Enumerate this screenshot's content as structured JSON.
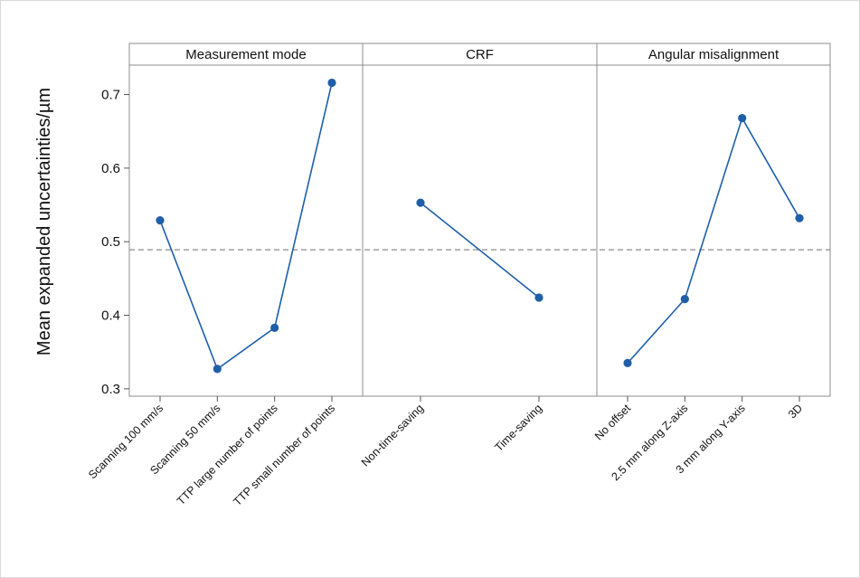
{
  "chart_data": {
    "type": "line",
    "ylabel": "Mean expanded uncertainties/µm",
    "ylim": [
      0.29,
      0.74
    ],
    "yticks": [
      "0.3",
      "0.4",
      "0.5",
      "0.6",
      "0.7"
    ],
    "reference_line": 0.489,
    "line_color": "#1f5fa8",
    "panels": [
      {
        "title": "Measurement mode",
        "categories": [
          "Scanning 100 mm/s",
          "Scanning 50 mm/s",
          "TTP large number of points",
          "TTP small number of points"
        ],
        "values": [
          0.529,
          0.327,
          0.383,
          0.716
        ]
      },
      {
        "title": "CRF",
        "categories": [
          "Non-time-saving",
          "Time-saving"
        ],
        "values": [
          0.553,
          0.424
        ]
      },
      {
        "title": "Angular misalignment",
        "categories": [
          "No offset",
          "2.5 mm along Z-axis",
          "3 mm along Y-axis",
          "3D"
        ],
        "values": [
          0.335,
          0.422,
          0.668,
          0.532
        ]
      }
    ]
  }
}
